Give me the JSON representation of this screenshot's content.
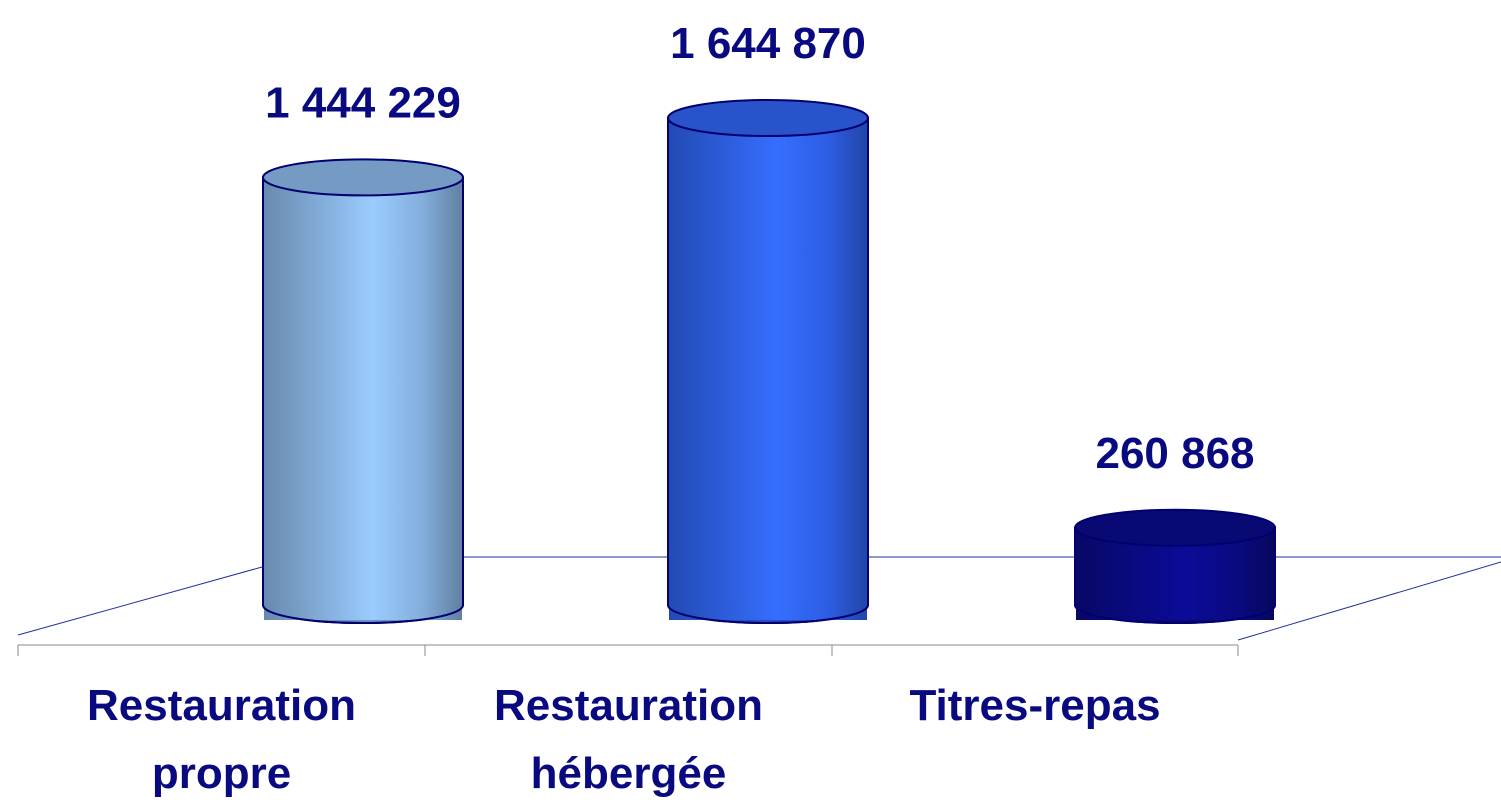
{
  "chart_data": {
    "type": "bar",
    "categories": [
      "Restauration propre",
      "Restauration hébergée",
      "Titres-repas"
    ],
    "values": [
      1444229,
      1644870,
      260868
    ],
    "value_labels": [
      "1 444 229",
      "1 644 870",
      "260 868"
    ],
    "colors": [
      "#8ab6e6",
      "#2f62ef",
      "#0a0a88"
    ]
  }
}
